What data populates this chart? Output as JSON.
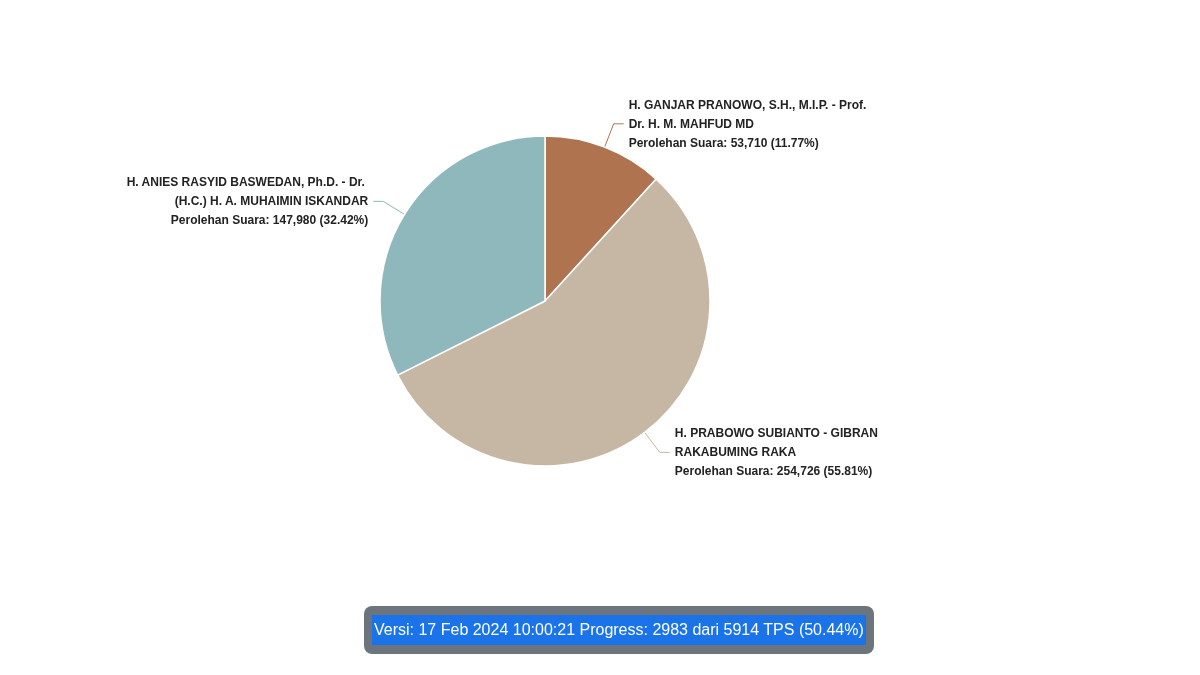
{
  "chart_data": {
    "type": "pie",
    "categories": [
      "H. GANJAR PRANOWO, S.H., M.I.P. - Prof. Dr. H. M. MAHFUD MD",
      "H. PRABOWO SUBIANTO - GIBRAN RAKABUMING RAKA",
      "H. ANIES RASYID BASWEDAN, Ph.D. - Dr. (H.C.) H. A. MUHAIMIN ISKANDAR"
    ],
    "values": [
      53710,
      254726,
      147980
    ],
    "colors": [
      "#b07350",
      "#c6b7a4",
      "#8fb8bc"
    ],
    "value_labels": [
      "Perolehan Suara: 53,710 (11.77%)",
      "Perolehan Suara: 254,726 (55.81%)",
      "Perolehan Suara: 147,980 (32.42%)"
    ],
    "legend": false,
    "annotations": [
      "Versi: 17 Feb 2024 10:00:21 Progress: 2983 dari 5914 TPS (50.44%)"
    ]
  }
}
